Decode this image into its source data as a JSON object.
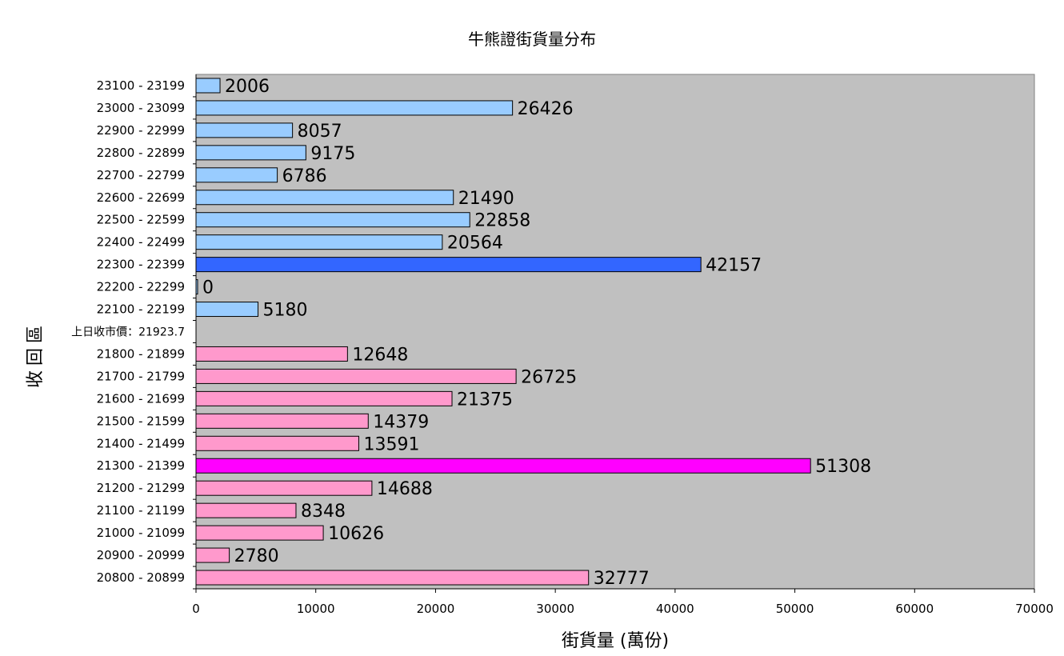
{
  "chart_data": {
    "type": "bar",
    "orientation": "horizontal",
    "title": "牛熊證街貨量分布",
    "xlabel": "街貨量 (萬份)",
    "ylabel": "收回區",
    "xlim": [
      0,
      70000
    ],
    "xticks": [
      0,
      10000,
      20000,
      30000,
      40000,
      50000,
      60000,
      70000
    ],
    "grid": false,
    "plot_background": "#c0c0c0",
    "colors": {
      "bull": "#99ccff",
      "bull_highlight": "#3366ff",
      "bear": "#ff99cc",
      "bear_highlight": "#ff00ff",
      "bar_border": "#000000"
    },
    "reference_label": "上日收市價：21923.7",
    "categories": [
      "23100 - 23199",
      "23000 - 23099",
      "22900 - 22999",
      "22800 - 22899",
      "22700 - 22799",
      "22600 - 22699",
      "22500 - 22599",
      "22400 - 22499",
      "22300 - 22399",
      "22200 - 22299",
      "22100 - 22199",
      "",
      "21800 - 21899",
      "21700 - 21799",
      "21600 - 21699",
      "21500 - 21599",
      "21400 - 21499",
      "21300 - 21399",
      "21200 - 21299",
      "21100 - 21199",
      "21000 - 21099",
      "20900 - 20999",
      "20800 - 20899"
    ],
    "values": [
      2006,
      26426,
      8057,
      9175,
      6786,
      21490,
      22858,
      20564,
      42157,
      0,
      5180,
      null,
      12648,
      26725,
      21375,
      14379,
      13591,
      51308,
      14688,
      8348,
      10626,
      2780,
      32777
    ],
    "bar_color_keys": [
      "bull",
      "bull",
      "bull",
      "bull",
      "bull",
      "bull",
      "bull",
      "bull",
      "bull_highlight",
      "bull",
      "bull",
      null,
      "bear",
      "bear",
      "bear",
      "bear",
      "bear",
      "bear_highlight",
      "bear",
      "bear",
      "bear",
      "bear",
      "bear"
    ]
  }
}
